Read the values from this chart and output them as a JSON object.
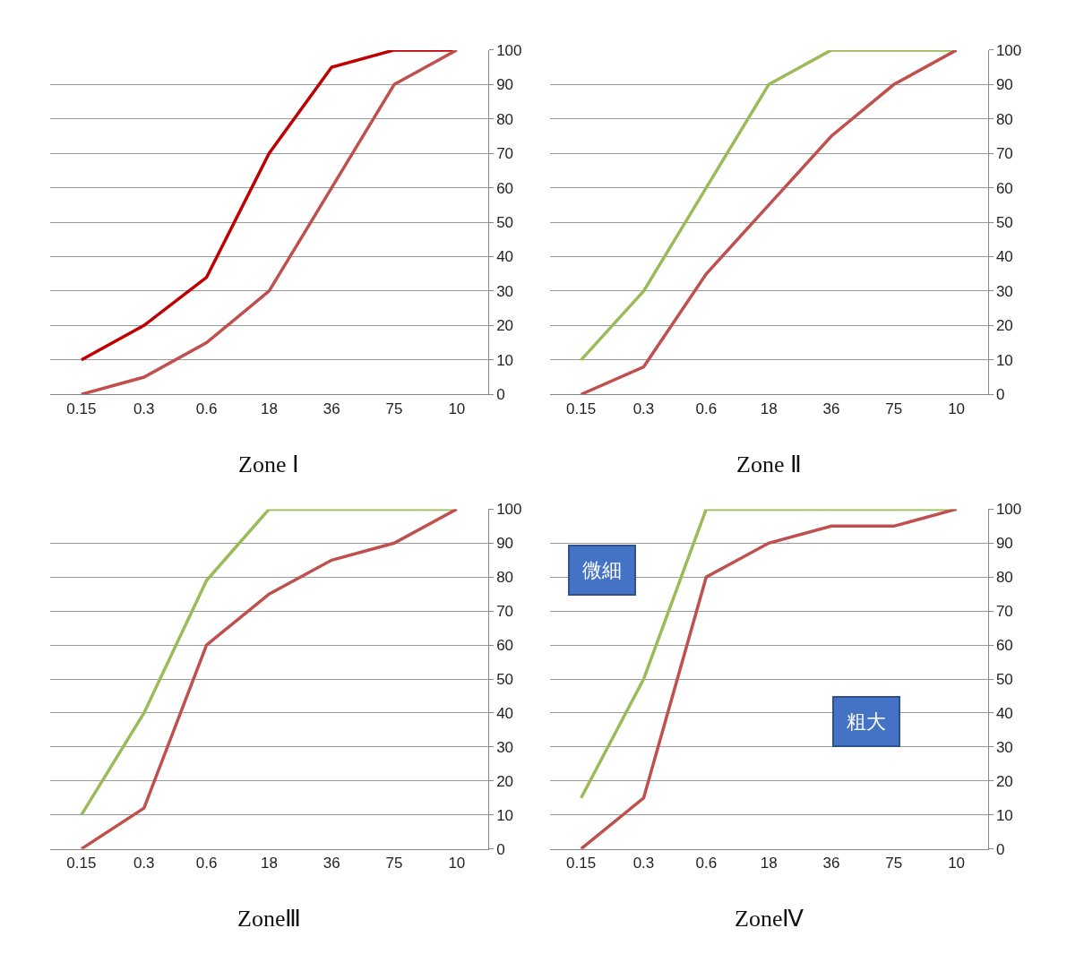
{
  "chart_data": [
    {
      "type": "line",
      "title": "Zone Ⅰ",
      "categories": [
        "0.15",
        "0.3",
        "0.6",
        "18",
        "36",
        "75",
        "10"
      ],
      "ylim": [
        0,
        100
      ],
      "yticks": [
        0,
        10,
        20,
        30,
        40,
        50,
        60,
        70,
        80,
        90,
        100
      ],
      "grid": "y",
      "series": [
        {
          "color": "#c00000",
          "values": [
            10,
            20,
            34,
            70,
            95,
            100,
            100
          ]
        },
        {
          "color": "#c0504d",
          "values": [
            0,
            5,
            15,
            30,
            60,
            90,
            100
          ]
        }
      ]
    },
    {
      "type": "line",
      "title": "Zone Ⅱ",
      "categories": [
        "0.15",
        "0.3",
        "0.6",
        "18",
        "36",
        "75",
        "10"
      ],
      "ylim": [
        0,
        100
      ],
      "yticks": [
        0,
        10,
        20,
        30,
        40,
        50,
        60,
        70,
        80,
        90,
        100
      ],
      "grid": "y",
      "series": [
        {
          "color": "#9bbb59",
          "values": [
            10,
            30,
            60,
            90,
            100,
            100,
            100
          ]
        },
        {
          "color": "#c0504d",
          "values": [
            0,
            8,
            35,
            55,
            75,
            90,
            100
          ]
        }
      ]
    },
    {
      "type": "line",
      "title": "ZoneⅢ",
      "categories": [
        "0.15",
        "0.3",
        "0.6",
        "18",
        "36",
        "75",
        "10"
      ],
      "ylim": [
        0,
        100
      ],
      "yticks": [
        0,
        10,
        20,
        30,
        40,
        50,
        60,
        70,
        80,
        90,
        100
      ],
      "grid": "y",
      "series": [
        {
          "color": "#9bbb59",
          "values": [
            10,
            40,
            79,
            100,
            100,
            100,
            100
          ]
        },
        {
          "color": "#c0504d",
          "values": [
            0,
            12,
            60,
            75,
            85,
            90,
            100
          ]
        }
      ]
    },
    {
      "type": "line",
      "title": "ZoneⅣ",
      "categories": [
        "0.15",
        "0.3",
        "0.6",
        "18",
        "36",
        "75",
        "10"
      ],
      "ylim": [
        0,
        100
      ],
      "yticks": [
        0,
        10,
        20,
        30,
        40,
        50,
        60,
        70,
        80,
        90,
        100
      ],
      "grid": "y",
      "annotations": [
        "微細",
        "粗大"
      ],
      "series": [
        {
          "color": "#9bbb59",
          "values": [
            15,
            50,
            100,
            100,
            100,
            100,
            100
          ]
        },
        {
          "color": "#c0504d",
          "values": [
            0,
            15,
            80,
            90,
            95,
            95,
            100
          ]
        }
      ]
    }
  ]
}
